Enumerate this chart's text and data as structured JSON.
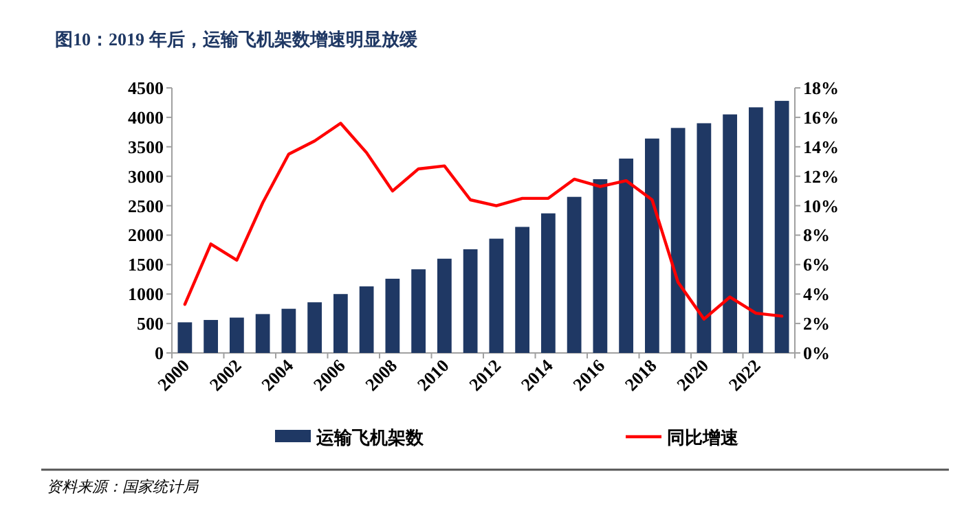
{
  "chart_data": {
    "type": "bar",
    "title": "图10：2019 年后，运输飞机架数增速明显放缓",
    "categories": [
      "2000",
      null,
      "2002",
      null,
      "2004",
      null,
      "2006",
      null,
      "2008",
      null,
      "2010",
      null,
      "2012",
      null,
      "2014",
      null,
      "2016",
      null,
      "2018",
      null,
      "2020",
      null,
      "2022",
      null
    ],
    "series": [
      {
        "name": "运输飞机架数",
        "color": "#1f3864",
        "values": [
          520,
          560,
          600,
          660,
          750,
          860,
          1000,
          1130,
          1260,
          1420,
          1600,
          1760,
          1940,
          2140,
          2370,
          2650,
          2950,
          3300,
          3640,
          3820,
          3900,
          4050,
          4170,
          4280
        ]
      },
      {
        "name": "同比增速",
        "type": "line",
        "axis": "y2",
        "color": "#ff0000",
        "values": [
          3.3,
          7.4,
          6.3,
          10.2,
          13.5,
          14.4,
          15.6,
          13.6,
          11.0,
          12.5,
          12.7,
          10.4,
          10.0,
          10.5,
          10.5,
          11.8,
          11.3,
          11.7,
          10.4,
          4.8,
          2.3,
          3.8,
          2.7,
          2.5
        ]
      }
    ],
    "ylim": [
      0,
      4500
    ],
    "yticks": [
      0,
      500,
      1000,
      1500,
      2000,
      2500,
      3000,
      3500,
      4000,
      4500
    ],
    "y2lim": [
      0,
      18
    ],
    "y2ticks": [
      {
        "value": 0,
        "label": "0%"
      },
      {
        "value": 2,
        "label": "2%"
      },
      {
        "value": 4,
        "label": "4%"
      },
      {
        "value": 6,
        "label": "6%"
      },
      {
        "value": 8,
        "label": "8%"
      },
      {
        "value": 10,
        "label": "10%"
      },
      {
        "value": 12,
        "label": "12%"
      },
      {
        "value": 14,
        "label": "14%"
      },
      {
        "value": 16,
        "label": "16%"
      },
      {
        "value": 18,
        "label": "18%"
      }
    ],
    "legend": "bottom",
    "annotations": [
      "资料来源：国家统计局"
    ]
  }
}
